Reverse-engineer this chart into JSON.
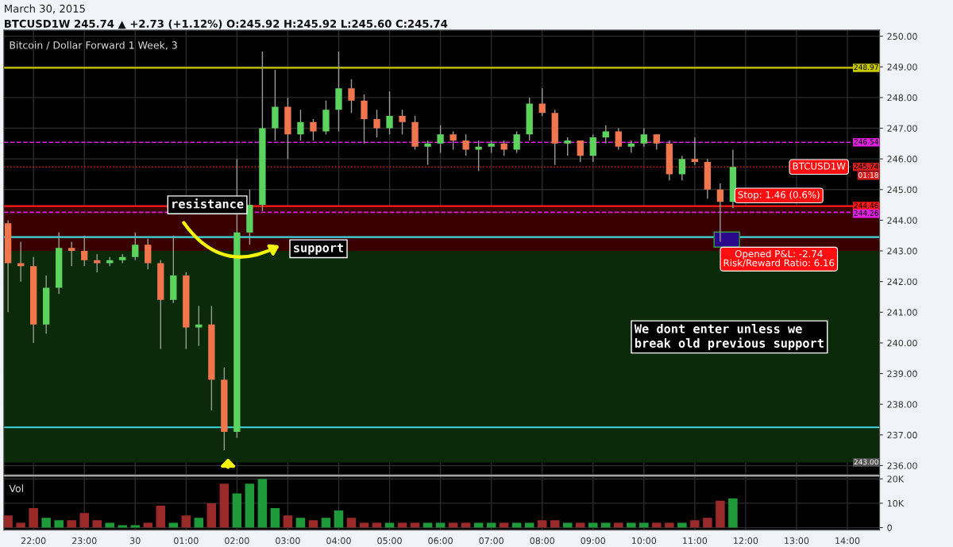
{
  "chart_data": [
    {
      "type": "candlestick",
      "title": "Bitcoin / Dollar Forward 1 Week, 3",
      "subtitle": "BTCUSD1W 245.74 ▲ +2.73 (+1.12%) O:245.92 H:245.92 L:245.60 C:245.74",
      "x": [
        "2015-03-29T21:30",
        "2015-03-29T21:45",
        "2015-03-29T22:00",
        "2015-03-29T22:15",
        "2015-03-29T22:30",
        "2015-03-29T22:45",
        "2015-03-29T23:00",
        "2015-03-29T23:15",
        "2015-03-29T23:30",
        "2015-03-29T23:45",
        "2015-03-30T00:00",
        "2015-03-30T00:15",
        "2015-03-30T00:30",
        "2015-03-30T00:45",
        "2015-03-30T01:00",
        "2015-03-30T01:15",
        "2015-03-30T01:30",
        "2015-03-30T01:45",
        "2015-03-30T02:00",
        "2015-03-30T02:15",
        "2015-03-30T02:30",
        "2015-03-30T02:45",
        "2015-03-30T03:00",
        "2015-03-30T03:15",
        "2015-03-30T03:30",
        "2015-03-30T03:45",
        "2015-03-30T04:00",
        "2015-03-30T04:15",
        "2015-03-30T04:30",
        "2015-03-30T04:45",
        "2015-03-30T05:00",
        "2015-03-30T05:15",
        "2015-03-30T05:30",
        "2015-03-30T05:45",
        "2015-03-30T06:00",
        "2015-03-30T06:15",
        "2015-03-30T06:30",
        "2015-03-30T06:45",
        "2015-03-30T07:00",
        "2015-03-30T07:15",
        "2015-03-30T07:30",
        "2015-03-30T07:45",
        "2015-03-30T08:00",
        "2015-03-30T08:15",
        "2015-03-30T08:30",
        "2015-03-30T08:45",
        "2015-03-30T09:00",
        "2015-03-30T09:15",
        "2015-03-30T09:30",
        "2015-03-30T09:45",
        "2015-03-30T10:00",
        "2015-03-30T10:15",
        "2015-03-30T10:30",
        "2015-03-30T10:45",
        "2015-03-30T11:00",
        "2015-03-30T11:15",
        "2015-03-30T11:30",
        "2015-03-30T11:45"
      ],
      "ohlc": [
        [
          243.9,
          244.0,
          241.0,
          242.6
        ],
        [
          242.6,
          243.3,
          242.0,
          242.5
        ],
        [
          242.5,
          242.8,
          240.0,
          240.6
        ],
        [
          240.6,
          242.2,
          240.3,
          241.8
        ],
        [
          241.8,
          243.6,
          241.6,
          243.1
        ],
        [
          243.1,
          243.3,
          242.5,
          243.0
        ],
        [
          243.0,
          243.5,
          242.5,
          242.7
        ],
        [
          242.7,
          242.9,
          242.3,
          242.6
        ],
        [
          242.6,
          242.8,
          242.5,
          242.7
        ],
        [
          242.7,
          242.9,
          242.6,
          242.8
        ],
        [
          242.8,
          243.6,
          242.7,
          243.2
        ],
        [
          243.2,
          243.4,
          242.4,
          242.6
        ],
        [
          242.6,
          242.7,
          239.8,
          241.4
        ],
        [
          241.4,
          243.5,
          241.3,
          242.2
        ],
        [
          242.2,
          242.3,
          239.8,
          240.5
        ],
        [
          240.5,
          241.2,
          239.9,
          240.6
        ],
        [
          240.6,
          241.2,
          237.8,
          238.8
        ],
        [
          238.8,
          239.2,
          236.5,
          237.1
        ],
        [
          237.1,
          246.0,
          236.9,
          243.6
        ],
        [
          243.6,
          245.0,
          243.2,
          244.5
        ],
        [
          244.5,
          249.5,
          244.3,
          247.0
        ],
        [
          247.0,
          248.9,
          246.6,
          247.7
        ],
        [
          247.7,
          248.0,
          246.0,
          246.8
        ],
        [
          246.8,
          247.6,
          246.6,
          247.2
        ],
        [
          247.2,
          247.3,
          246.6,
          246.9
        ],
        [
          246.9,
          247.9,
          246.8,
          247.6
        ],
        [
          247.6,
          249.5,
          246.9,
          248.3
        ],
        [
          248.3,
          248.6,
          247.5,
          247.9
        ],
        [
          247.9,
          248.1,
          246.5,
          247.3
        ],
        [
          247.3,
          247.6,
          246.7,
          247.0
        ],
        [
          247.0,
          248.2,
          246.8,
          247.4
        ],
        [
          247.4,
          247.6,
          246.8,
          247.2
        ],
        [
          247.2,
          247.4,
          246.3,
          246.4
        ],
        [
          246.4,
          246.6,
          245.8,
          246.5
        ],
        [
          246.5,
          247.1,
          246.2,
          246.8
        ],
        [
          246.8,
          246.9,
          246.3,
          246.6
        ],
        [
          246.6,
          246.8,
          246.1,
          246.3
        ],
        [
          246.3,
          246.6,
          245.6,
          246.4
        ],
        [
          246.4,
          246.6,
          246.2,
          246.5
        ],
        [
          246.5,
          246.6,
          246.1,
          246.3
        ],
        [
          246.3,
          246.9,
          246.2,
          246.8
        ],
        [
          246.8,
          248.0,
          246.6,
          247.8
        ],
        [
          247.8,
          248.3,
          247.4,
          247.5
        ],
        [
          247.5,
          247.6,
          245.8,
          246.5
        ],
        [
          246.5,
          246.7,
          246.1,
          246.6
        ],
        [
          246.6,
          246.6,
          245.9,
          246.1
        ],
        [
          246.1,
          246.8,
          245.9,
          246.7
        ],
        [
          246.7,
          247.1,
          246.5,
          246.9
        ],
        [
          246.9,
          247.0,
          246.3,
          246.4
        ],
        [
          246.4,
          246.6,
          246.2,
          246.5
        ],
        [
          246.5,
          247.0,
          246.4,
          246.8
        ],
        [
          246.8,
          246.8,
          246.3,
          246.5
        ],
        [
          246.5,
          246.6,
          245.3,
          245.5
        ],
        [
          245.5,
          246.1,
          245.3,
          246.0
        ],
        [
          246.0,
          246.7,
          245.8,
          245.9
        ],
        [
          245.9,
          246.0,
          244.7,
          245.0
        ],
        [
          245.0,
          245.2,
          243.3,
          244.6
        ],
        [
          244.6,
          246.3,
          244.4,
          245.74
        ]
      ],
      "colors": [
        "#f2764d",
        "#f2764d",
        "#f2764d",
        "#5cd35c",
        "#5cd35c",
        "#f2764d",
        "#f2764d",
        "#f2764d",
        "#5cd35c",
        "#5cd35c",
        "#5cd35c",
        "#f2764d",
        "#f2764d",
        "#5cd35c",
        "#f2764d",
        "#5cd35c",
        "#f2764d",
        "#f2764d",
        "#5cd35c",
        "#5cd35c",
        "#5cd35c",
        "#5cd35c",
        "#f2764d",
        "#5cd35c",
        "#f2764d",
        "#5cd35c",
        "#5cd35c",
        "#f2764d",
        "#f2764d",
        "#f2764d",
        "#5cd35c",
        "#f2764d",
        "#f2764d",
        "#5cd35c",
        "#5cd35c",
        "#f2764d",
        "#f2764d",
        "#5cd35c",
        "#5cd35c",
        "#f2764d",
        "#5cd35c",
        "#5cd35c",
        "#f2764d",
        "#f2764d",
        "#5cd35c",
        "#f2764d",
        "#5cd35c",
        "#5cd35c",
        "#f2764d",
        "#5cd35c",
        "#5cd35c",
        "#f2764d",
        "#f2764d",
        "#5cd35c",
        "#f2764d",
        "#f2764d",
        "#f2764d",
        "#5cd35c"
      ],
      "xlim": [
        "2015-03-29T21:25",
        "2015-03-30T14:38"
      ],
      "xticks": [
        {
          "value": "2015-03-29T22:00",
          "label": null
        },
        {
          "value": "2015-03-29T23:00",
          "label": null
        },
        {
          "value": "2015-03-30T00:00",
          "label": null
        },
        {
          "value": "2015-03-30T01:00",
          "label": null
        },
        {
          "value": "2015-03-30T02:00",
          "label": null
        },
        {
          "value": "2015-03-30T03:00",
          "label": null
        },
        {
          "value": "2015-03-30T04:00",
          "label": null
        },
        {
          "value": "2015-03-30T05:00",
          "label": null
        },
        {
          "value": "2015-03-30T06:00",
          "label": null
        },
        {
          "value": "2015-03-30T07:00",
          "label": null
        },
        {
          "value": "2015-03-30T08:00",
          "label": null
        },
        {
          "value": "2015-03-30T09:00",
          "label": null
        },
        {
          "value": "2015-03-30T10:00",
          "label": null
        },
        {
          "value": "2015-03-30T11:00",
          "label": null
        },
        {
          "value": "2015-03-30T12:00",
          "label": null
        },
        {
          "value": "2015-03-30T13:00",
          "label": null
        },
        {
          "value": "2015-03-30T14:00",
          "label": null
        }
      ],
      "ylim": [
        235.7,
        250.2
      ],
      "yticks": [
        {
          "value": 236,
          "label": "236.00"
        },
        {
          "value": 237,
          "label": "237.00"
        },
        {
          "value": 238,
          "label": "238.00"
        },
        {
          "value": 239,
          "label": "239.00"
        },
        {
          "value": 240,
          "label": "240.00"
        },
        {
          "value": 241,
          "label": "241.00"
        },
        {
          "value": 242,
          "label": "242.00"
        },
        {
          "value": 243,
          "label": "243.00"
        },
        {
          "value": 244,
          "label": "244.00"
        },
        {
          "value": 245,
          "label": "245.00"
        },
        {
          "value": 246,
          "label": "246.00"
        },
        {
          "value": 247,
          "label": "247.00"
        },
        {
          "value": 248,
          "label": "248.00"
        },
        {
          "value": 249,
          "label": "249.00"
        },
        {
          "value": 250,
          "label": "250.00"
        }
      ],
      "tick_labels": "y",
      "grid": true,
      "ref_lines": [
        {
          "axis": "y",
          "value": 248.97,
          "label": "248.97",
          "color": "#c8c800",
          "line_style": "solid"
        },
        {
          "axis": "y",
          "value": 246.54,
          "label": "246.54",
          "color": "#e020e0",
          "line_style": "dashed"
        },
        {
          "axis": "y",
          "value": 245.74,
          "label": "245.74",
          "color": "#d02020",
          "line_style": "dotted"
        },
        {
          "axis": "y",
          "value": 244.46,
          "label": "244.46",
          "color": "#ff1a1a",
          "line_style": "solid"
        },
        {
          "axis": "y",
          "value": 244.26,
          "label": "244.26",
          "color": "#e020e0",
          "line_style": "dashed"
        },
        {
          "axis": "y",
          "value": 243.45,
          "color": "#40d8e0",
          "line_style": "solid"
        },
        {
          "axis": "y",
          "value": 237.25,
          "color": "#40d8e0",
          "line_style": "solid"
        }
      ],
      "bands": [
        {
          "axis": "y",
          "from": 243.0,
          "to": 244.46,
          "color": "#3a0000"
        },
        {
          "axis": "y",
          "from": 236.1,
          "to": 243.0,
          "label": "243.00",
          "color": "#0a2a0a"
        }
      ],
      "annotations": [
        "March 30, 2015",
        "We dont enter unless we\nbreak old previous support",
        "Stop: 1.46 (0.6%)",
        "Opened P&L: -2.74\nRisk/Reward Ratio: 6.16",
        "01:18",
        {
          "text": "resistance",
          "x": "2015-03-30T00:42",
          "y": 244.5
        },
        {
          "text": "support",
          "x": "2015-03-30T03:06",
          "y": 243.07
        },
        {
          "text": "BTCUSD1W",
          "x": "2015-03-30T13:58",
          "y": 245.74
        }
      ]
    },
    {
      "type": "bar",
      "title": "Vol",
      "x": [
        "2015-03-29T21:30",
        "2015-03-29T21:45",
        "2015-03-29T22:00",
        "2015-03-29T22:15",
        "2015-03-29T22:30",
        "2015-03-29T22:45",
        "2015-03-29T23:00",
        "2015-03-29T23:15",
        "2015-03-29T23:30",
        "2015-03-29T23:45",
        "2015-03-30T00:00",
        "2015-03-30T00:15",
        "2015-03-30T00:30",
        "2015-03-30T00:45",
        "2015-03-30T01:00",
        "2015-03-30T01:15",
        "2015-03-30T01:30",
        "2015-03-30T01:45",
        "2015-03-30T02:00",
        "2015-03-30T02:15",
        "2015-03-30T02:30",
        "2015-03-30T02:45",
        "2015-03-30T03:00",
        "2015-03-30T03:15",
        "2015-03-30T03:30",
        "2015-03-30T03:45",
        "2015-03-30T04:00",
        "2015-03-30T04:15",
        "2015-03-30T04:30",
        "2015-03-30T04:45",
        "2015-03-30T05:00",
        "2015-03-30T05:15",
        "2015-03-30T05:30",
        "2015-03-30T05:45",
        "2015-03-30T06:00",
        "2015-03-30T06:15",
        "2015-03-30T06:30",
        "2015-03-30T06:45",
        "2015-03-30T07:00",
        "2015-03-30T07:15",
        "2015-03-30T07:30",
        "2015-03-30T07:45",
        "2015-03-30T08:00",
        "2015-03-30T08:15",
        "2015-03-30T08:30",
        "2015-03-30T08:45",
        "2015-03-30T09:00",
        "2015-03-30T09:15",
        "2015-03-30T09:30",
        "2015-03-30T09:45",
        "2015-03-30T10:00",
        "2015-03-30T10:15",
        "2015-03-30T10:30",
        "2015-03-30T10:45",
        "2015-03-30T11:00",
        "2015-03-30T11:15",
        "2015-03-30T11:30",
        "2015-03-30T11:45"
      ],
      "values": [
        5,
        2,
        8,
        4,
        3,
        3,
        6,
        3,
        2,
        1,
        1,
        2,
        9,
        2,
        5,
        4,
        10,
        18,
        14,
        18,
        20,
        8,
        5,
        4,
        3,
        4,
        7,
        4,
        2,
        2,
        2,
        2,
        2,
        2,
        2,
        2,
        2,
        2,
        2,
        2,
        2,
        2,
        3,
        3,
        2,
        2,
        2,
        2,
        2,
        2,
        2,
        2,
        2,
        2,
        3,
        4,
        11,
        12
      ],
      "colors": [
        "#9a2a2a",
        "#9a2a2a",
        "#9a2a2a",
        "#1f9a3a",
        "#1f9a3a",
        "#9a2a2a",
        "#9a2a2a",
        "#9a2a2a",
        "#1f9a3a",
        "#1f9a3a",
        "#1f9a3a",
        "#9a2a2a",
        "#9a2a2a",
        "#1f9a3a",
        "#9a2a2a",
        "#1f9a3a",
        "#9a2a2a",
        "#9a2a2a",
        "#1f9a3a",
        "#1f9a3a",
        "#1f9a3a",
        "#1f9a3a",
        "#9a2a2a",
        "#1f9a3a",
        "#9a2a2a",
        "#1f9a3a",
        "#1f9a3a",
        "#9a2a2a",
        "#9a2a2a",
        "#9a2a2a",
        "#1f9a3a",
        "#9a2a2a",
        "#9a2a2a",
        "#1f9a3a",
        "#1f9a3a",
        "#9a2a2a",
        "#9a2a2a",
        "#1f9a3a",
        "#1f9a3a",
        "#9a2a2a",
        "#1f9a3a",
        "#1f9a3a",
        "#9a2a2a",
        "#9a2a2a",
        "#1f9a3a",
        "#9a2a2a",
        "#1f9a3a",
        "#1f9a3a",
        "#9a2a2a",
        "#1f9a3a",
        "#1f9a3a",
        "#9a2a2a",
        "#9a2a2a",
        "#1f9a3a",
        "#9a2a2a",
        "#9a2a2a",
        "#9a2a2a",
        "#1f9a3a"
      ],
      "xlim": [
        "2015-03-29T21:25",
        "2015-03-30T14:38"
      ],
      "xticks": [
        {
          "value": "2015-03-29T22:00",
          "label": "22:00"
        },
        {
          "value": "2015-03-29T23:00",
          "label": "23:00"
        },
        {
          "value": "2015-03-30T00:00",
          "label": "30"
        },
        {
          "value": "2015-03-30T01:00",
          "label": "01:00"
        },
        {
          "value": "2015-03-30T02:00",
          "label": "02:00"
        },
        {
          "value": "2015-03-30T03:00",
          "label": "03:00"
        },
        {
          "value": "2015-03-30T04:00",
          "label": "04:00"
        },
        {
          "value": "2015-03-30T05:00",
          "label": "05:00"
        },
        {
          "value": "2015-03-30T06:00",
          "label": "06:00"
        },
        {
          "value": "2015-03-30T07:00",
          "label": "07:00"
        },
        {
          "value": "2015-03-30T08:00",
          "label": "08:00"
        },
        {
          "value": "2015-03-30T09:00",
          "label": "09:00"
        },
        {
          "value": "2015-03-30T10:00",
          "label": "10:00"
        },
        {
          "value": "2015-03-30T11:00",
          "label": "11:00"
        },
        {
          "value": "2015-03-30T12:00",
          "label": "12:00"
        },
        {
          "value": "2015-03-30T13:00",
          "label": "13:00"
        },
        {
          "value": "2015-03-30T14:00",
          "label": "14:00"
        }
      ],
      "ylim": [
        -1,
        21
      ],
      "yticks": [
        0,
        {
          "value": 10,
          "label": "10K"
        },
        {
          "value": 20,
          "label": "20K"
        }
      ],
      "grid": true
    }
  ]
}
